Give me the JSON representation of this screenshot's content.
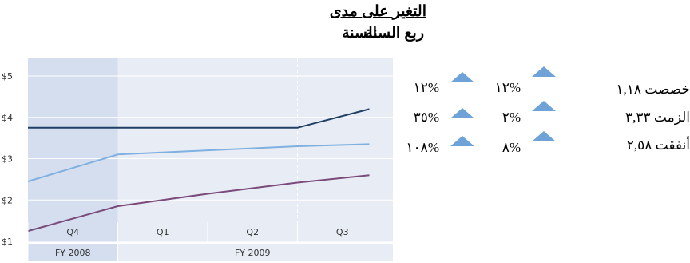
{
  "header": {
    "title": "التغير على مدى",
    "col_quarter": "ربع السنة",
    "col_year": "السنة"
  },
  "rows": [
    {
      "label": "خصصت ١,١٨",
      "quarter_change": "١٢%",
      "year_change": "١٢%",
      "quarter_icon": "arrow-up-icon",
      "year_icon": "arrow-up-icon"
    },
    {
      "label": "الزمت ٣,٣٣",
      "quarter_change": "٢%",
      "year_change": "٣٥%",
      "quarter_icon": "arrow-up-icon",
      "year_icon": "arrow-up-icon"
    },
    {
      "label": "أنفقت ٢,٥٨",
      "quarter_change": "٨%",
      "year_change": "١٠٨%",
      "quarter_icon": "arrow-up-icon",
      "year_icon": "arrow-up-icon"
    }
  ],
  "colors": {
    "arrow": "#6fa3d8",
    "highlight": "#d4deee",
    "plot_bg": "#e8edf5"
  },
  "chart_data": {
    "type": "line",
    "ylim": [
      1,
      5
    ],
    "yticks": [
      "$1",
      "$2",
      "$3",
      "$4",
      "$5"
    ],
    "ytick_values": [
      1,
      2,
      3,
      4,
      5
    ],
    "quarters": [
      "Q4",
      "Q1",
      "Q2",
      "Q3"
    ],
    "fiscal_years": [
      {
        "label": "FY 2008",
        "quarters": 1
      },
      {
        "label": "FY 2009",
        "quarters": 3
      }
    ],
    "x_range": [
      0,
      3.8
    ],
    "highlight_quarter": 0,
    "current_marker": 3,
    "series": [
      {
        "color": "#1f3f66",
        "x": [
          0,
          3,
          3.8
        ],
        "y": [
          3.75,
          3.75,
          4.2
        ]
      },
      {
        "color": "#7fb0e0",
        "x": [
          0,
          1,
          2,
          3,
          3.8
        ],
        "y": [
          2.45,
          3.1,
          3.2,
          3.3,
          3.35
        ]
      },
      {
        "color": "#7a4a7a",
        "x": [
          0,
          1,
          2,
          3,
          3.8
        ],
        "y": [
          1.25,
          1.85,
          2.15,
          2.42,
          2.6
        ]
      }
    ]
  }
}
